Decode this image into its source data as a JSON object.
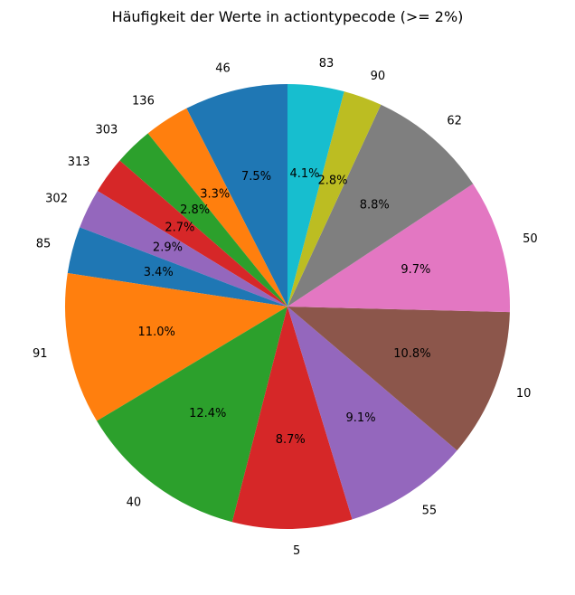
{
  "chart_data": {
    "type": "pie",
    "title": "Häufigkeit der Werte in actiontypecode (>= 2%)",
    "start_angle_deg": 90,
    "direction": "counterclockwise",
    "categories": [
      "46",
      "136",
      "303",
      "313",
      "302",
      "85",
      "91",
      "40",
      "5",
      "55",
      "10",
      "50",
      "62",
      "90",
      "83"
    ],
    "values": [
      7.5,
      3.3,
      2.8,
      2.7,
      2.9,
      3.4,
      11.0,
      12.4,
      8.7,
      9.1,
      10.8,
      9.7,
      8.8,
      2.8,
      4.1
    ],
    "percent_labels": [
      "7.5%",
      "3.3%",
      "2.8%",
      "2.7%",
      "2.9%",
      "3.4%",
      "11.0%",
      "12.4%",
      "8.7%",
      "9.1%",
      "10.8%",
      "9.7%",
      "8.8%",
      "2.8%",
      "4.1%"
    ],
    "colors": [
      "#1f77b4",
      "#ff7f0e",
      "#2ca02c",
      "#d62728",
      "#9467bd",
      "#1f77b4",
      "#ff7f0e",
      "#2ca02c",
      "#d62728",
      "#9467bd",
      "#8c564b",
      "#e377c2",
      "#7f7f7f",
      "#bcbd22",
      "#17becf"
    ]
  }
}
